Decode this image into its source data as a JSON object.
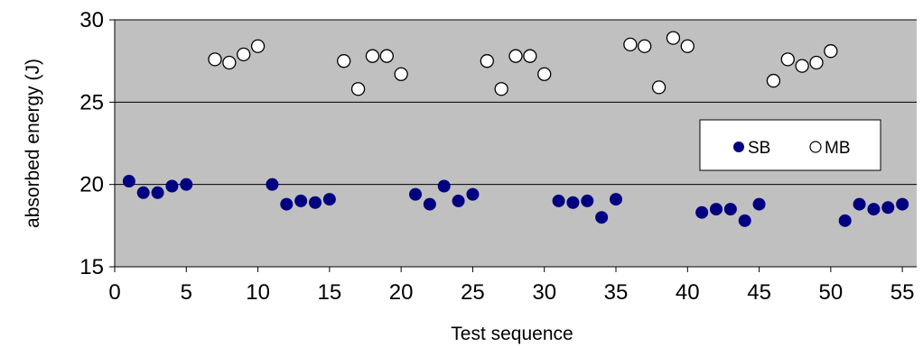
{
  "chart_data": {
    "type": "scatter",
    "title": "",
    "xlabel": "Test sequence",
    "ylabel": "absorbed energy (J)",
    "xlim": [
      0,
      56
    ],
    "ylim": [
      15,
      30
    ],
    "xticks": [
      0,
      5,
      10,
      15,
      20,
      25,
      30,
      35,
      40,
      45,
      50,
      55
    ],
    "yticks": [
      15,
      20,
      25,
      30
    ],
    "horizontal_gridlines": true,
    "plot_background": "#c0c0c0",
    "legend_position": "right, inside plot",
    "series": [
      {
        "name": "SB",
        "marker": "filled-circle",
        "color": "#000080",
        "x": [
          1,
          2,
          3,
          4,
          5,
          11,
          12,
          13,
          14,
          15,
          21,
          22,
          23,
          24,
          25,
          31,
          32,
          33,
          34,
          35,
          41,
          42,
          43,
          44,
          45,
          51,
          52,
          53,
          54,
          55
        ],
        "y": [
          20.2,
          19.5,
          19.5,
          19.9,
          20.0,
          20.0,
          18.8,
          19.0,
          18.9,
          19.1,
          19.4,
          18.8,
          19.9,
          19.0,
          19.4,
          19.0,
          18.9,
          19.0,
          18.0,
          19.1,
          18.3,
          18.5,
          18.5,
          17.8,
          18.8,
          17.8,
          18.8,
          18.5,
          18.6,
          18.8
        ]
      },
      {
        "name": "MB",
        "marker": "open-circle",
        "color": "#000000",
        "x": [
          7,
          8,
          9,
          10,
          16,
          17,
          18,
          19,
          20,
          26,
          27,
          28,
          29,
          30,
          36,
          37,
          38,
          39,
          40,
          46,
          47,
          48,
          49,
          50
        ],
        "y": [
          27.6,
          27.4,
          27.9,
          28.4,
          27.5,
          25.8,
          27.8,
          27.8,
          26.7,
          27.5,
          25.8,
          27.8,
          27.8,
          26.7,
          28.5,
          28.4,
          25.9,
          28.9,
          28.4,
          26.3,
          27.6,
          27.2,
          27.4,
          28.1
        ]
      }
    ]
  }
}
